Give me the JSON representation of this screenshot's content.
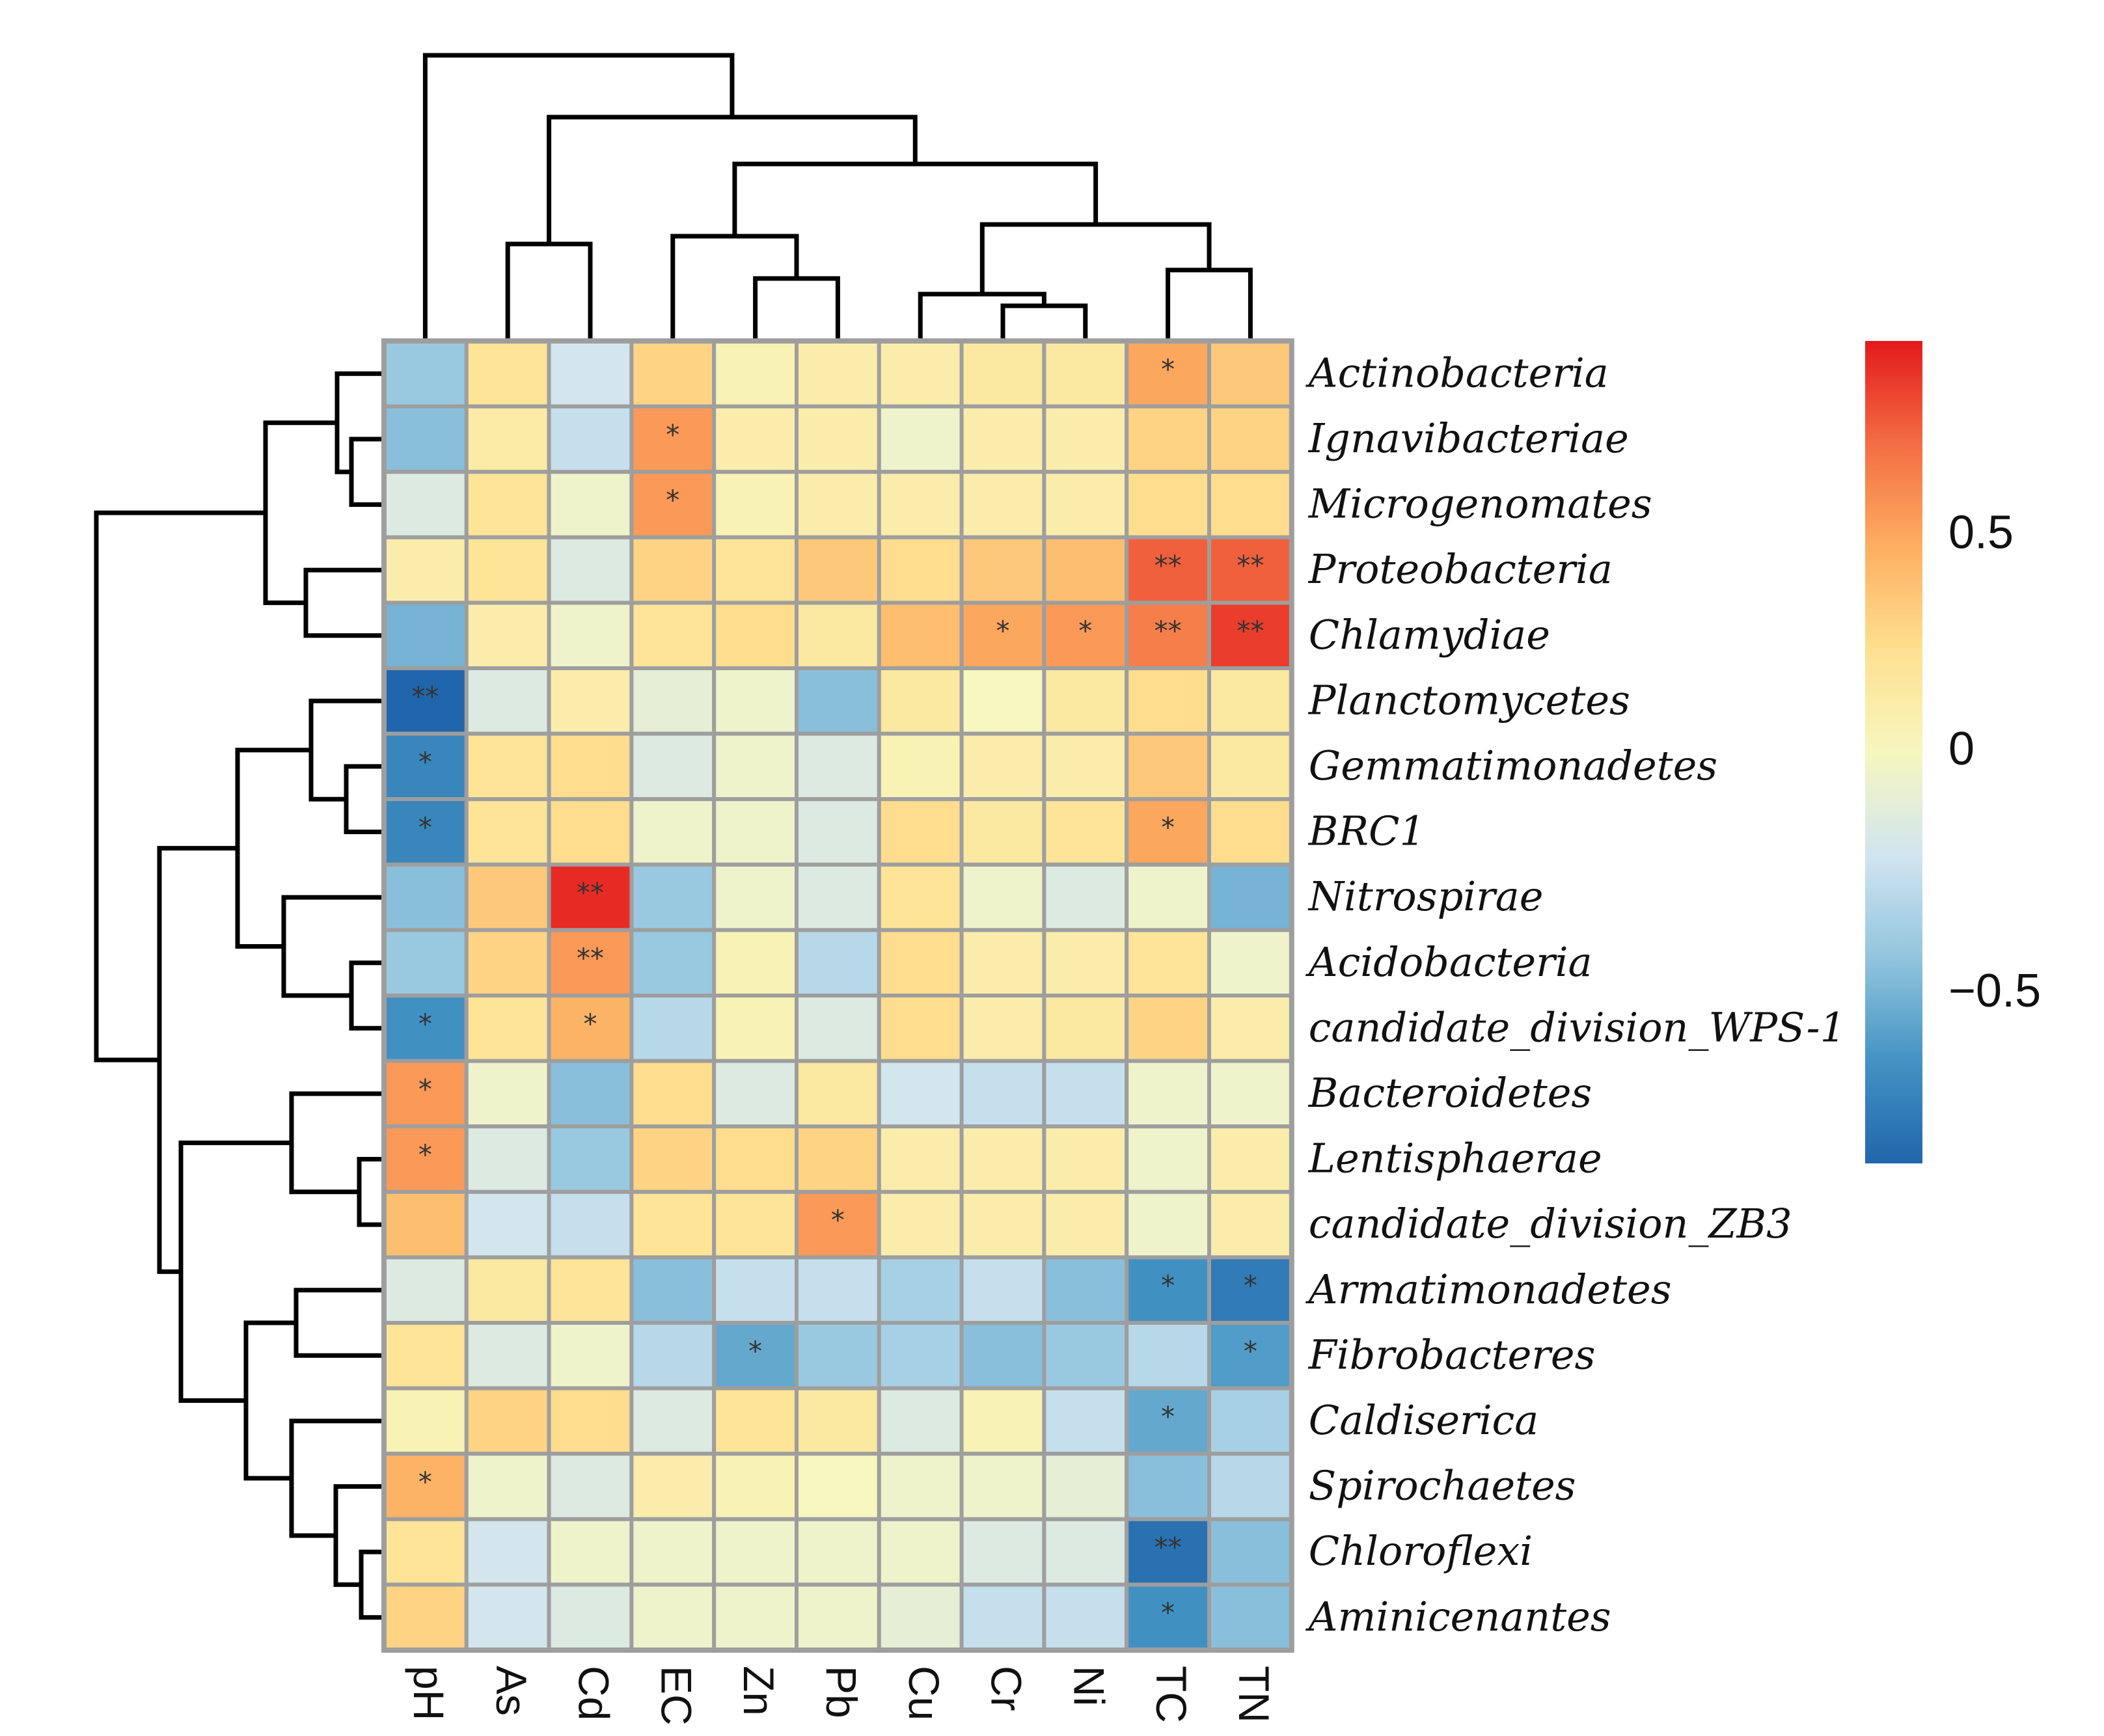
{
  "chart_data": {
    "type": "heatmap",
    "title": "",
    "columns": [
      "pH",
      "As",
      "Cd",
      "EC",
      "Zn",
      "Pb",
      "Cu",
      "Cr",
      "Ni",
      "TC",
      "TN"
    ],
    "rows": [
      "Actinobacteria",
      "Ignavibacteriae",
      "Microgenomates",
      "Proteobacteria",
      "Chlamydiae",
      "Planctomycetes",
      "Gemmatimonadetes",
      "BRC1",
      "Nitrospirae",
      "Acidobacteria",
      "candidate_division_WPS-1",
      "Bacteroidetes",
      "Lentisphaerae",
      "candidate_division_ZB3",
      "Armatimonadetes",
      "Fibrobacteres",
      "Caldiserica",
      "Spirochaetes",
      "Chloroflexi",
      "Aminicenantes"
    ],
    "values": [
      [
        -0.4,
        0.2,
        -0.2,
        0.3,
        0.05,
        0.1,
        0.1,
        0.15,
        0.15,
        0.5,
        0.35
      ],
      [
        -0.45,
        0.12,
        -0.25,
        0.55,
        0.1,
        0.1,
        -0.05,
        0.1,
        0.1,
        0.3,
        0.3
      ],
      [
        -0.15,
        0.2,
        -0.05,
        0.55,
        0.05,
        0.1,
        0.1,
        0.1,
        0.1,
        0.25,
        0.25
      ],
      [
        0.1,
        0.2,
        -0.15,
        0.3,
        0.2,
        0.35,
        0.25,
        0.35,
        0.4,
        0.75,
        0.75
      ],
      [
        -0.5,
        0.1,
        -0.05,
        0.2,
        0.25,
        0.15,
        0.4,
        0.5,
        0.55,
        0.65,
        0.85
      ],
      [
        -0.85,
        -0.15,
        0.1,
        -0.1,
        -0.05,
        -0.45,
        0.15,
        0.0,
        0.15,
        0.25,
        0.15
      ],
      [
        -0.7,
        0.2,
        0.25,
        -0.15,
        -0.05,
        -0.15,
        0.05,
        0.1,
        0.1,
        0.35,
        0.15
      ],
      [
        -0.7,
        0.2,
        0.25,
        -0.05,
        -0.05,
        -0.15,
        0.25,
        0.15,
        0.2,
        0.5,
        0.25
      ],
      [
        -0.45,
        0.35,
        0.9,
        -0.4,
        -0.05,
        -0.15,
        0.2,
        -0.05,
        -0.15,
        -0.05,
        -0.5
      ],
      [
        -0.4,
        0.3,
        0.55,
        -0.4,
        0.05,
        -0.3,
        0.25,
        0.1,
        0.1,
        0.2,
        -0.05
      ],
      [
        -0.65,
        0.2,
        0.45,
        -0.3,
        0.05,
        -0.15,
        0.25,
        0.1,
        0.15,
        0.3,
        0.1
      ],
      [
        0.55,
        -0.05,
        -0.45,
        0.25,
        -0.15,
        0.15,
        -0.2,
        -0.25,
        -0.25,
        -0.05,
        -0.05
      ],
      [
        0.55,
        -0.15,
        -0.4,
        0.3,
        0.25,
        0.3,
        0.1,
        0.1,
        0.1,
        -0.05,
        0.1
      ],
      [
        0.4,
        -0.2,
        -0.25,
        0.2,
        0.2,
        0.55,
        0.1,
        0.1,
        0.1,
        -0.05,
        0.1
      ],
      [
        -0.15,
        0.15,
        0.2,
        -0.45,
        -0.25,
        -0.25,
        -0.35,
        -0.25,
        -0.45,
        -0.65,
        -0.75
      ],
      [
        0.2,
        -0.15,
        -0.05,
        -0.3,
        -0.55,
        -0.4,
        -0.35,
        -0.45,
        -0.4,
        -0.3,
        -0.6
      ],
      [
        0.05,
        0.3,
        0.25,
        -0.15,
        0.2,
        0.15,
        -0.15,
        0.05,
        -0.25,
        -0.55,
        -0.35
      ],
      [
        0.45,
        -0.05,
        -0.15,
        0.1,
        0.05,
        0.0,
        -0.05,
        -0.05,
        -0.1,
        -0.45,
        -0.3
      ],
      [
        0.2,
        -0.2,
        -0.05,
        -0.05,
        -0.05,
        -0.05,
        -0.05,
        -0.15,
        -0.15,
        -0.8,
        -0.45
      ],
      [
        0.3,
        -0.2,
        -0.15,
        -0.05,
        -0.05,
        -0.05,
        -0.1,
        -0.25,
        -0.25,
        -0.65,
        -0.45
      ]
    ],
    "significance": [
      [
        "",
        "",
        "",
        "",
        "",
        "",
        "",
        "",
        "",
        "*",
        ""
      ],
      [
        "",
        "",
        "",
        "*",
        "",
        "",
        "",
        "",
        "",
        "",
        ""
      ],
      [
        "",
        "",
        "",
        "*",
        "",
        "",
        "",
        "",
        "",
        "",
        ""
      ],
      [
        "",
        "",
        "",
        "",
        "",
        "",
        "",
        "",
        "",
        "**",
        "**"
      ],
      [
        "",
        "",
        "",
        "",
        "",
        "",
        "",
        "*",
        "*",
        "**",
        "**"
      ],
      [
        "**",
        "",
        "",
        "",
        "",
        "",
        "",
        "",
        "",
        "",
        ""
      ],
      [
        "*",
        "",
        "",
        "",
        "",
        "",
        "",
        "",
        "",
        "",
        ""
      ],
      [
        "*",
        "",
        "",
        "",
        "",
        "",
        "",
        "",
        "",
        "*",
        ""
      ],
      [
        "",
        "",
        "**",
        "",
        "",
        "",
        "",
        "",
        "",
        "",
        ""
      ],
      [
        "",
        "",
        "**",
        "",
        "",
        "",
        "",
        "",
        "",
        "",
        ""
      ],
      [
        "*",
        "",
        "*",
        "",
        "",
        "",
        "",
        "",
        "",
        "",
        ""
      ],
      [
        "*",
        "",
        "",
        "",
        "",
        "",
        "",
        "",
        "",
        "",
        ""
      ],
      [
        "*",
        "",
        "",
        "",
        "",
        "",
        "",
        "",
        "",
        "",
        ""
      ],
      [
        "",
        "",
        "",
        "",
        "",
        "*",
        "",
        "",
        "",
        "",
        ""
      ],
      [
        "",
        "",
        "",
        "",
        "",
        "",
        "",
        "",
        "",
        "*",
        "*"
      ],
      [
        "",
        "",
        "",
        "",
        "*",
        "",
        "",
        "",
        "",
        "",
        "*"
      ],
      [
        "",
        "",
        "",
        "",
        "",
        "",
        "",
        "",
        "",
        "*",
        ""
      ],
      [
        "*",
        "",
        "",
        "",
        "",
        "",
        "",
        "",
        "",
        "",
        ""
      ],
      [
        "",
        "",
        "",
        "",
        "",
        "",
        "",
        "",
        "",
        "**",
        ""
      ],
      [
        "",
        "",
        "",
        "",
        "",
        "",
        "",
        "",
        "",
        "*",
        ""
      ]
    ],
    "colorbar": {
      "range": [
        -0.85,
        0.95
      ],
      "ticks": [
        0.5,
        0,
        -0.5
      ],
      "tick_labels": [
        "0.5",
        "0",
        "−0.5"
      ],
      "colors": [
        "#2166ac",
        "#4393c3",
        "#92c5de",
        "#d1e5f0",
        "#f7f7bf",
        "#fee090",
        "#fdae61",
        "#f46d43",
        "#e31a1c"
      ]
    },
    "column_dendrogram": [
      [
        0,
        1,
        "Cu",
        "Cr-Ni",
        0.05
      ],
      [
        1,
        1,
        "Zn",
        "Pb",
        0.1
      ],
      [
        2,
        1,
        "TC",
        "TN",
        0.1
      ]
    ]
  }
}
